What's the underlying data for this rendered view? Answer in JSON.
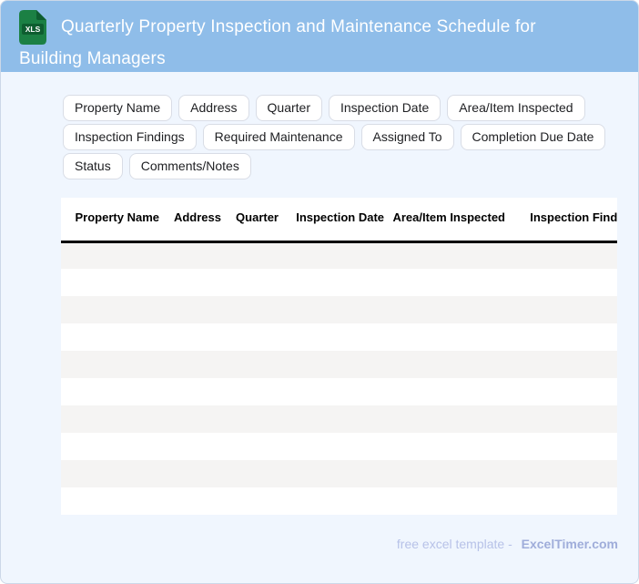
{
  "header": {
    "icon_label": "XLS",
    "title_line1": "Quarterly Property Inspection and Maintenance Schedule for",
    "title_line2": "Building Managers"
  },
  "chips": {
    "rows": [
      [
        "Property Name",
        "Address",
        "Quarter",
        "Inspection Date",
        "Area/Item Inspected"
      ],
      [
        "Inspection Findings",
        "Required Maintenance",
        "Assigned To",
        "Completion Due Date"
      ],
      [
        "Status",
        "Comments/Notes"
      ]
    ]
  },
  "table": {
    "columns": [
      "Property Name",
      "Address",
      "Quarter",
      "Inspection Date",
      "Area/Item Inspected",
      "Inspection Findings"
    ],
    "empty_row_count": 10
  },
  "footer": {
    "text": "free excel template -",
    "brand": "ExcelTimer.com"
  },
  "colors": {
    "header_bg": "#8fbde9",
    "body_bg": "#f0f6fe",
    "card_border": "#ccd8e8",
    "chip_border": "#d9dde6",
    "chip_text": "#202124",
    "stripe": "#f5f4f3",
    "header_text": "#ffffff",
    "table_text": "#000000",
    "icon_green": "#1b8044",
    "icon_green_dark": "#0e5d30",
    "footer_text": "#b7c2e8",
    "footer_brand": "#9fadda"
  }
}
